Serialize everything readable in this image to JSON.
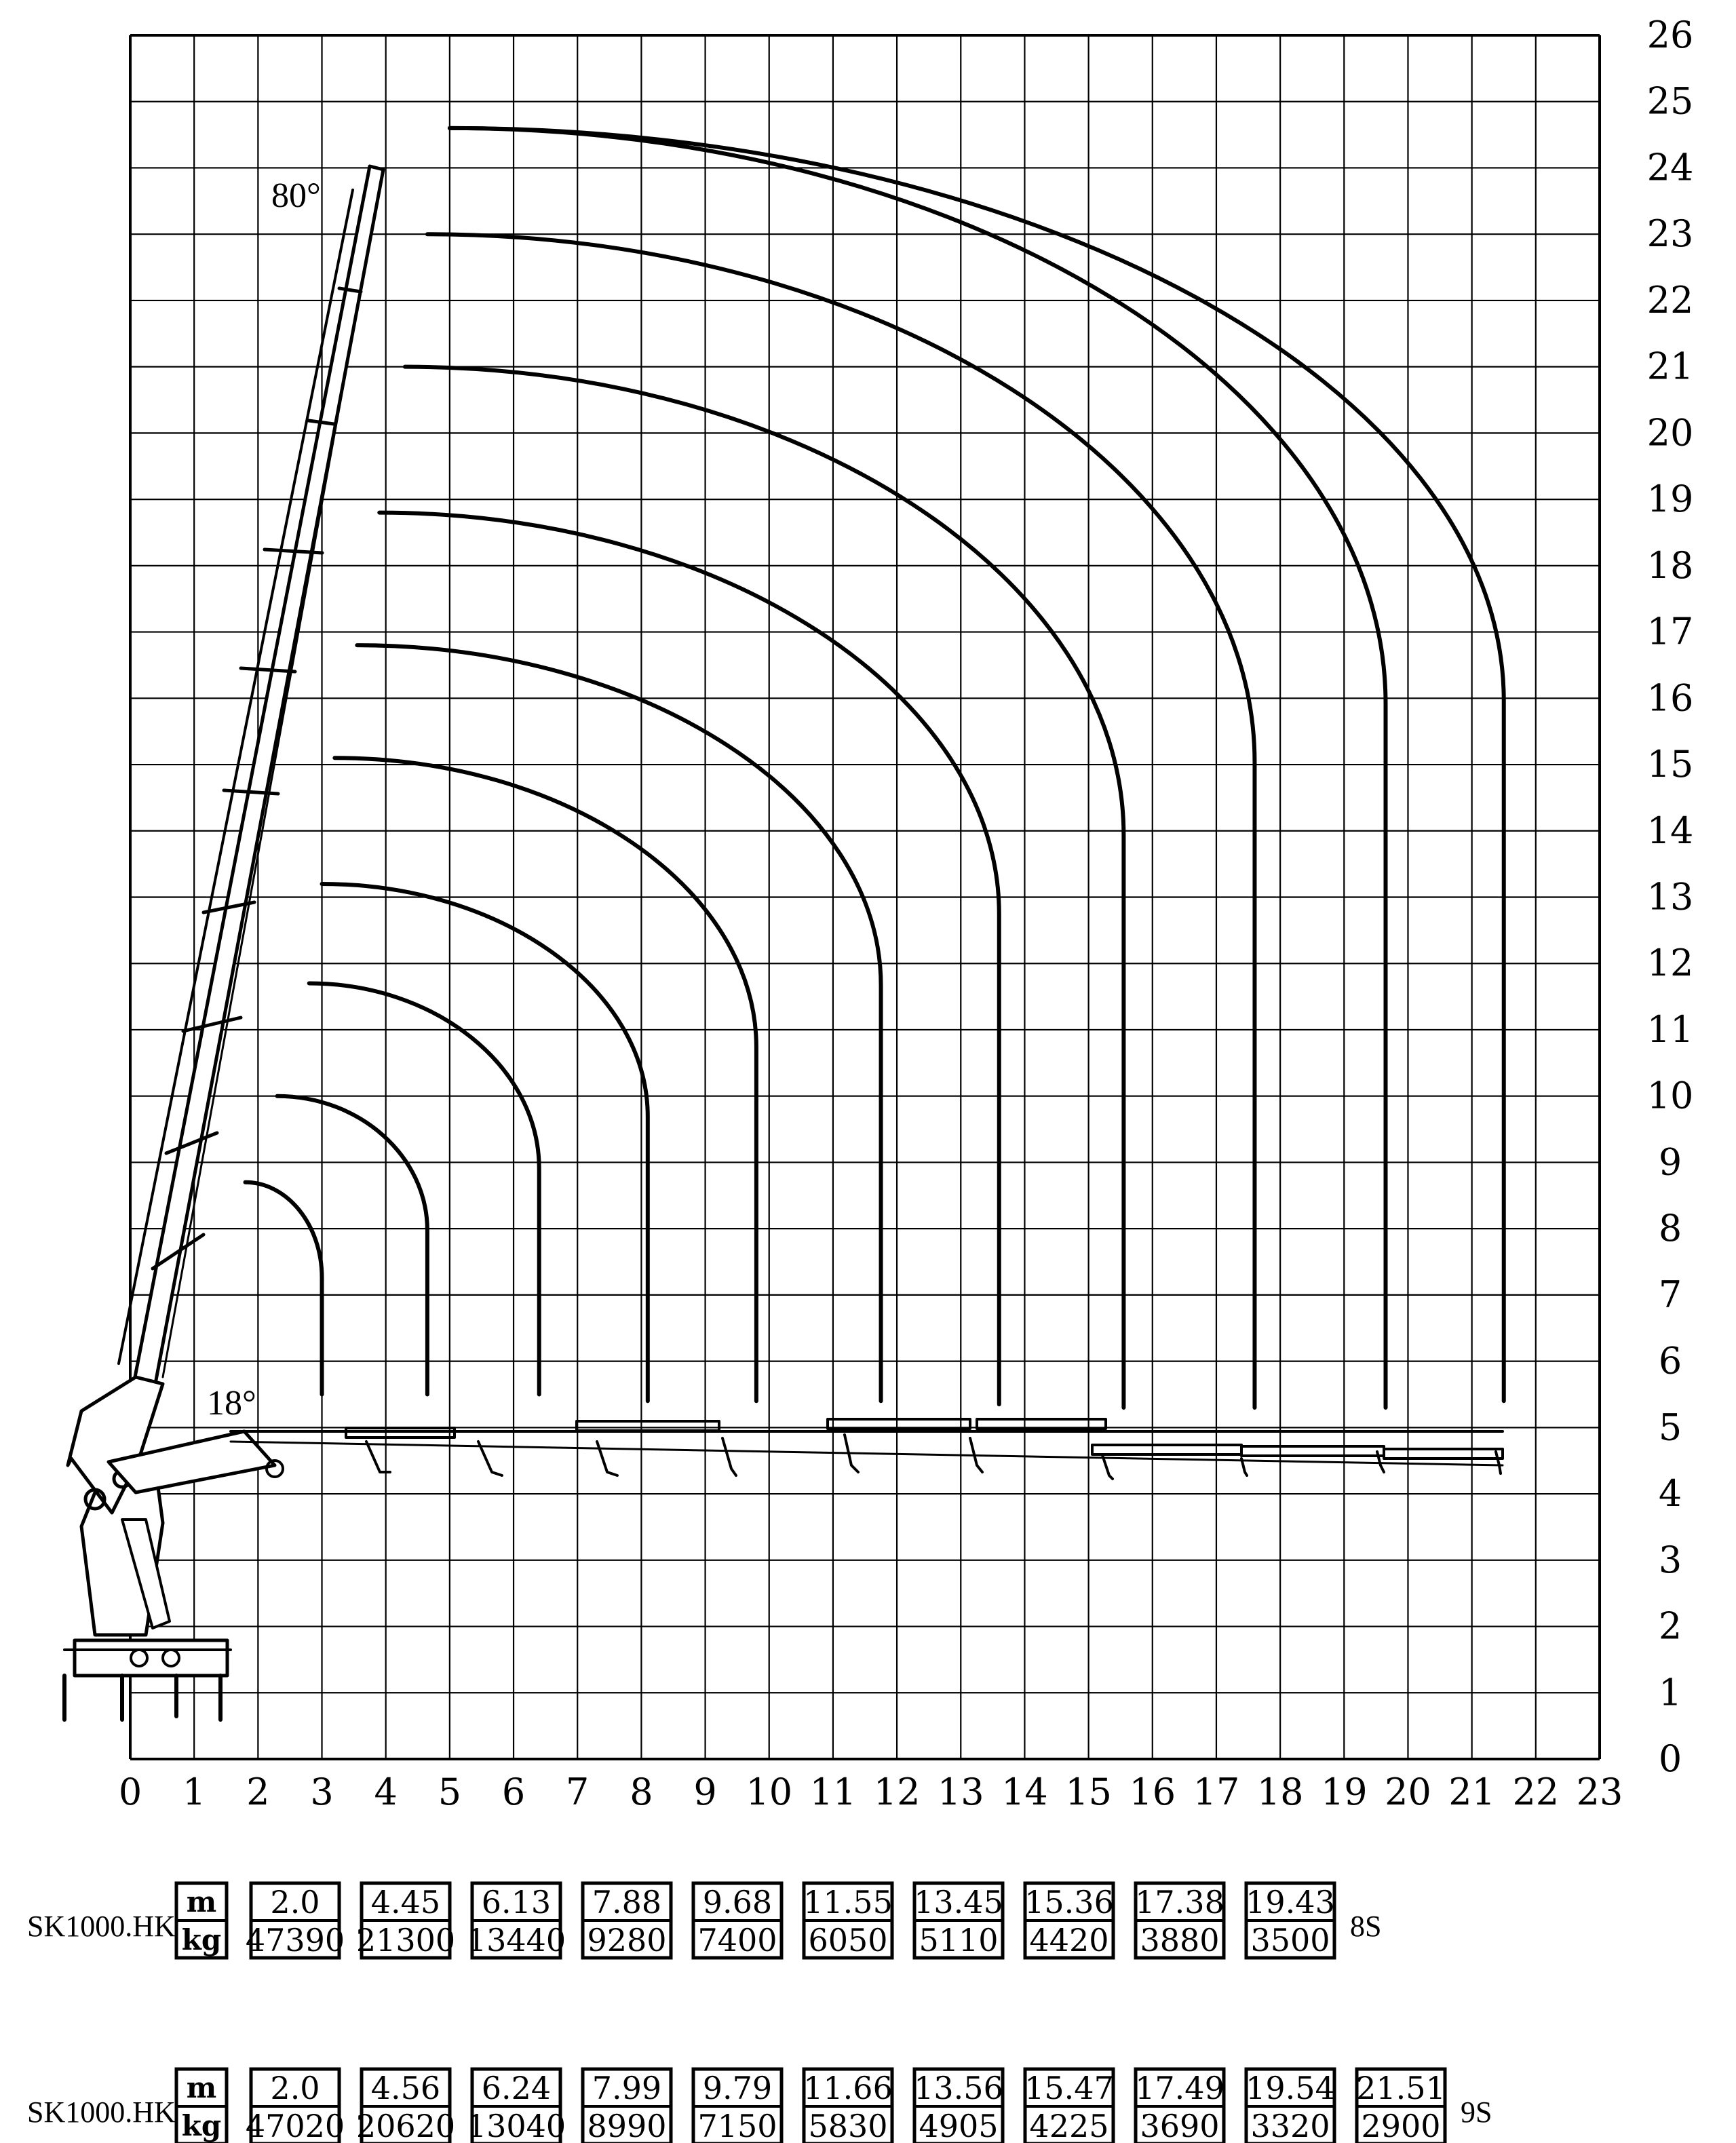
{
  "chart_data": {
    "type": "line",
    "xlim": [
      0,
      23
    ],
    "ylim": [
      0,
      26
    ],
    "x_ticks": [
      "0",
      "1",
      "2",
      "3",
      "4",
      "5",
      "6",
      "7",
      "8",
      "9",
      "10",
      "11",
      "12",
      "13",
      "14",
      "15",
      "16",
      "17",
      "18",
      "19",
      "20",
      "21",
      "22",
      "23"
    ],
    "y_ticks": [
      "0",
      "1",
      "2",
      "3",
      "4",
      "5",
      "6",
      "7",
      "8",
      "9",
      "10",
      "11",
      "12",
      "13",
      "14",
      "15",
      "16",
      "17",
      "18",
      "19",
      "20",
      "21",
      "22",
      "23",
      "24",
      "25",
      "26"
    ],
    "grid": true,
    "annotations": {
      "max_angle": "80°",
      "min_angle": "18°"
    },
    "arcs": [
      {
        "start": [
          1.8,
          8.7
        ],
        "end_x": 3.0,
        "drop_to_y": 5.5
      },
      {
        "start": [
          2.3,
          10.0
        ],
        "end_x": 4.65,
        "drop_to_y": 5.5
      },
      {
        "start": [
          2.8,
          11.7
        ],
        "end_x": 6.4,
        "drop_to_y": 5.5
      },
      {
        "start": [
          3.0,
          13.2
        ],
        "end_x": 8.1,
        "drop_to_y": 5.4
      },
      {
        "start": [
          3.2,
          15.1
        ],
        "end_x": 9.8,
        "drop_to_y": 5.4
      },
      {
        "start": [
          3.55,
          16.8
        ],
        "end_x": 11.75,
        "drop_to_y": 5.4
      },
      {
        "start": [
          3.9,
          18.8
        ],
        "end_x": 13.6,
        "drop_to_y": 5.35
      },
      {
        "start": [
          4.3,
          21.0
        ],
        "end_x": 15.55,
        "drop_to_y": 5.3
      },
      {
        "start": [
          4.65,
          23.0
        ],
        "end_x": 17.6,
        "drop_to_y": 5.3
      },
      {
        "start": [
          5.0,
          24.6
        ],
        "end_x": 19.65,
        "drop_to_y": 5.3
      },
      {
        "start": [
          5.0,
          24.6
        ],
        "end_x": 21.5,
        "drop_to_y": 5.4
      }
    ]
  },
  "tables": [
    {
      "model": "SK1000.HK",
      "unit_top": "m",
      "unit_bottom": "kg",
      "suffix": "8S",
      "reach_m": [
        "2.0",
        "4.45",
        "6.13",
        "7.88",
        "9.68",
        "11.55",
        "13.45",
        "15.36",
        "17.38",
        "19.43"
      ],
      "load_kg": [
        "47390",
        "21300",
        "13440",
        "9280",
        "7400",
        "6050",
        "5110",
        "4420",
        "3880",
        "3500"
      ]
    },
    {
      "model": "SK1000.HK",
      "unit_top": "m",
      "unit_bottom": "kg",
      "suffix": "9S",
      "reach_m": [
        "2.0",
        "4.56",
        "6.24",
        "7.99",
        "9.79",
        "11.66",
        "13.56",
        "15.47",
        "17.49",
        "19.54",
        "21.51"
      ],
      "load_kg": [
        "47020",
        "20620",
        "13040",
        "8990",
        "7150",
        "5830",
        "4905",
        "4225",
        "3690",
        "3320",
        "2900"
      ]
    }
  ]
}
